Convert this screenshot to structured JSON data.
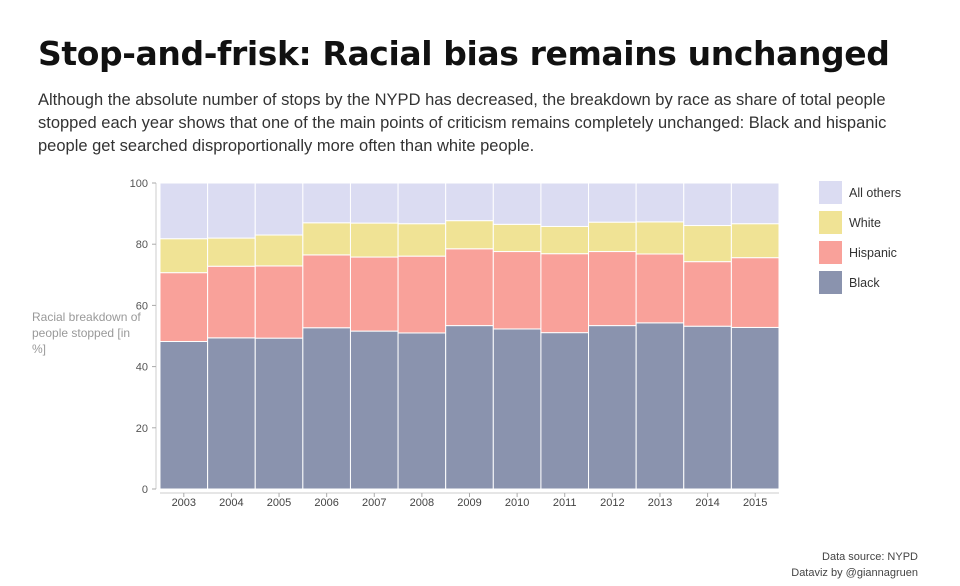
{
  "title": "Stop-and-frisk: Racial bias remains unchanged",
  "subtitle": "Although the absolute number of stops by the NYPD has decreased, the breakdown by race as share of total people stopped each year shows that one of the main points of criticism remains completely unchanged: Black and hispanic people get searched disproportionally more often than white people.",
  "source": {
    "line1": "Data source: NYPD",
    "line2": "Dataviz by @giannagruen"
  },
  "chart_data": {
    "type": "bar",
    "stacked": true,
    "categories": [
      "2003",
      "2004",
      "2005",
      "2006",
      "2007",
      "2008",
      "2009",
      "2010",
      "2011",
      "2012",
      "2013",
      "2014",
      "2015"
    ],
    "series": [
      {
        "name": "Black",
        "color": "#8a93ae",
        "values": [
          48.2,
          49.4,
          49.3,
          52.7,
          51.6,
          51.0,
          53.4,
          52.3,
          51.1,
          53.4,
          54.3,
          53.2,
          52.8
        ]
      },
      {
        "name": "Hispanic",
        "color": "#f9a19a",
        "values": [
          22.5,
          23.4,
          23.6,
          23.8,
          24.2,
          25.1,
          25.1,
          25.3,
          25.8,
          24.2,
          22.5,
          21.1,
          22.8
        ]
      },
      {
        "name": "White",
        "color": "#f0e395",
        "values": [
          11.1,
          9.2,
          10.1,
          10.5,
          11.1,
          10.6,
          9.2,
          8.9,
          8.9,
          9.6,
          10.5,
          11.8,
          11.1
        ]
      },
      {
        "name": "All others",
        "color": "#dbdcf2",
        "values": [
          18.2,
          18.0,
          17.0,
          13.0,
          13.1,
          13.3,
          12.3,
          13.5,
          14.2,
          12.8,
          12.7,
          13.9,
          13.3
        ]
      }
    ],
    "legend_order": [
      "All others",
      "White",
      "Hispanic",
      "Black"
    ],
    "ylabel": "Racial breakdown of people stopped [in %]",
    "ylim": [
      0,
      100
    ],
    "yticks": [
      0,
      20,
      40,
      60,
      80,
      100
    ],
    "legend_position": "right"
  }
}
